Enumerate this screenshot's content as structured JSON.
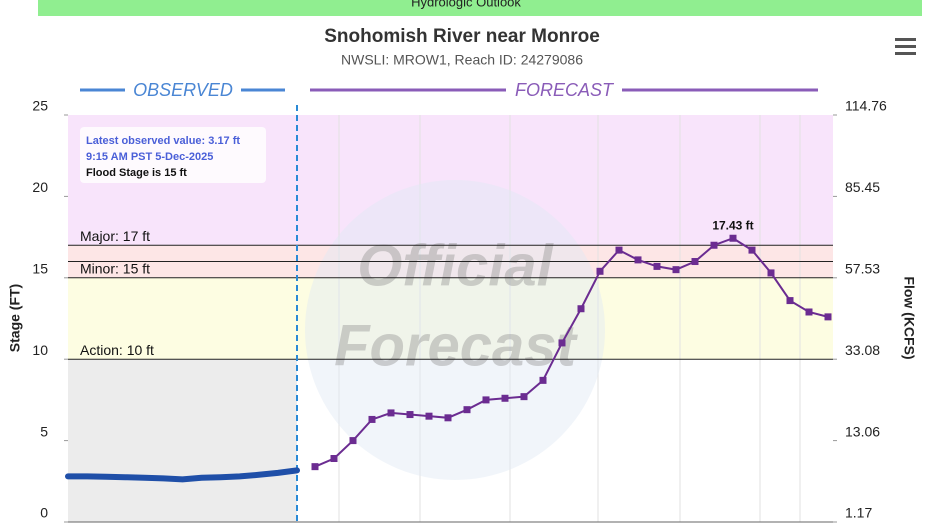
{
  "chart_data": {
    "type": "line",
    "banner": "Hydrologic Outlook",
    "title": "Snohomish River near Monroe",
    "subtitle": "NWSLI: MROW1, Reach ID: 24279086",
    "ylabel": "Stage (FT)",
    "y2label": "Flow (KCFS)",
    "ylim": [
      0,
      25
    ],
    "yticks": [
      0,
      5,
      10,
      15,
      20,
      25
    ],
    "y2ticks": [
      1.17,
      13.06,
      33.08,
      57.53,
      85.45,
      114.76
    ],
    "watermark": [
      "Official",
      "Forecast"
    ],
    "thresholds": [
      {
        "label": "Action: 10 ft",
        "value": 10,
        "color": "#fdfde2"
      },
      {
        "label": "Minor: 15 ft",
        "value": 15,
        "color": "#fde6e6"
      },
      {
        "value": 16,
        "color": "#fde6e6"
      },
      {
        "label": "Major: 17 ft",
        "value": 17,
        "color": "#f8e4fb"
      }
    ],
    "below_action_color": "#ececec",
    "annotation": [
      "Latest observed value: 3.17 ft",
      "9:15 AM PST 5-Dec-2025",
      "Flood Stage is 15 ft"
    ],
    "series": [
      {
        "name": "OBSERVED",
        "color": "#1f4fa8",
        "header_color": "#4a86d4",
        "values": [
          2.8,
          2.8,
          2.78,
          2.75,
          2.72,
          2.68,
          2.62,
          2.72,
          2.75,
          2.8,
          2.9,
          3.02,
          3.17
        ]
      },
      {
        "name": "FORECAST",
        "color": "#6b2c91",
        "header_color": "#8a5cb8",
        "values": [
          3.4,
          3.9,
          5.0,
          6.3,
          6.7,
          6.6,
          6.5,
          6.4,
          6.9,
          7.5,
          7.6,
          7.7,
          8.7,
          11.0,
          13.1,
          15.4,
          16.7,
          16.1,
          15.7,
          15.5,
          16.0,
          17.0,
          17.43,
          16.7,
          15.3,
          13.6,
          12.9,
          12.6
        ],
        "value_labels": [
          null,
          null,
          null,
          null,
          null,
          null,
          null,
          null,
          null,
          null,
          null,
          null,
          null,
          null,
          null,
          null,
          null,
          null,
          null,
          null,
          null,
          null,
          "17.43 ft",
          null,
          null,
          null,
          null,
          null
        ]
      }
    ]
  }
}
